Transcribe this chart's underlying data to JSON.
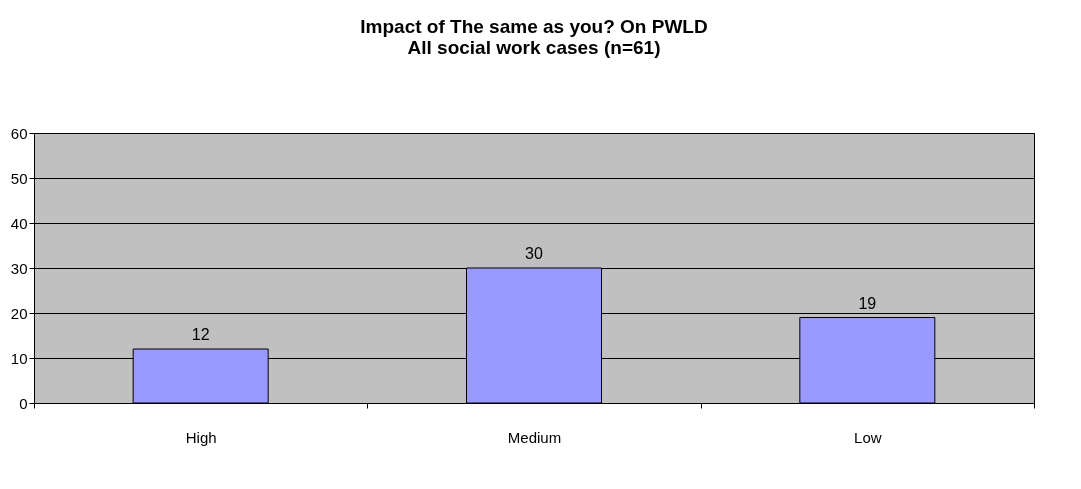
{
  "chart_data": {
    "type": "bar",
    "title": [
      "Impact of The same as you? On PWLD",
      "All social work cases (n=61)"
    ],
    "categories": [
      "High",
      "Medium",
      "Low"
    ],
    "values": [
      12,
      30,
      19
    ],
    "color": "#9999ff",
    "ylim": [
      0,
      60
    ],
    "yticks": [
      0,
      10,
      20,
      30,
      40,
      50,
      60
    ],
    "grid": "y",
    "data_labels": true
  }
}
